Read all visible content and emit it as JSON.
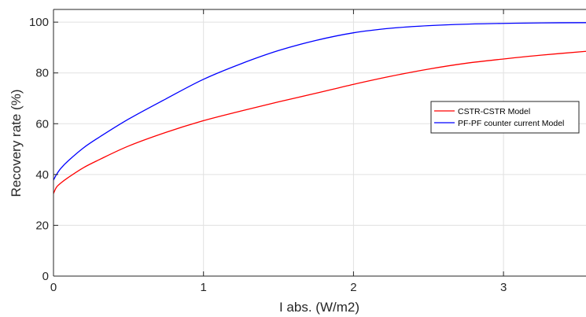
{
  "chart_data": {
    "type": "line",
    "title": "",
    "xlabel": "I abs. (W/m2)",
    "ylabel": "Recovery rate (%)",
    "xlim": [
      0,
      3.55
    ],
    "ylim": [
      0,
      105
    ],
    "xticks": [
      0,
      1,
      2,
      3
    ],
    "xtick_labels": [
      "0",
      "1",
      "2",
      "3"
    ],
    "yticks": [
      0,
      20,
      40,
      60,
      80,
      100
    ],
    "ytick_labels": [
      "0",
      "20",
      "40",
      "60",
      "80",
      "100"
    ],
    "grid": true,
    "legend_position": "upper-right",
    "series": [
      {
        "name": "CSTR-CSTR Model",
        "color": "#ff0000",
        "x": [
          0,
          0.02,
          0.05,
          0.1,
          0.2,
          0.3,
          0.5,
          0.75,
          1.0,
          1.25,
          1.5,
          1.75,
          2.0,
          2.25,
          2.5,
          2.75,
          3.0,
          3.25,
          3.55
        ],
        "y": [
          32.5,
          35.0,
          36.7,
          38.9,
          42.7,
          45.7,
          51.2,
          56.6,
          61.2,
          65.0,
          68.6,
          72.0,
          75.5,
          78.7,
          81.5,
          83.8,
          85.5,
          87.0,
          88.5
        ]
      },
      {
        "name": "PF-PF counter current Model",
        "color": "#0000ff",
        "x": [
          0,
          0.02,
          0.05,
          0.1,
          0.2,
          0.3,
          0.5,
          0.75,
          1.0,
          1.25,
          1.5,
          1.75,
          2.0,
          2.25,
          2.5,
          2.75,
          3.0,
          3.25,
          3.55
        ],
        "y": [
          37.8,
          40.0,
          42.5,
          45.5,
          50.5,
          54.5,
          61.8,
          69.8,
          77.5,
          83.6,
          88.8,
          92.8,
          95.8,
          97.6,
          98.6,
          99.2,
          99.5,
          99.7,
          99.8
        ]
      }
    ]
  }
}
